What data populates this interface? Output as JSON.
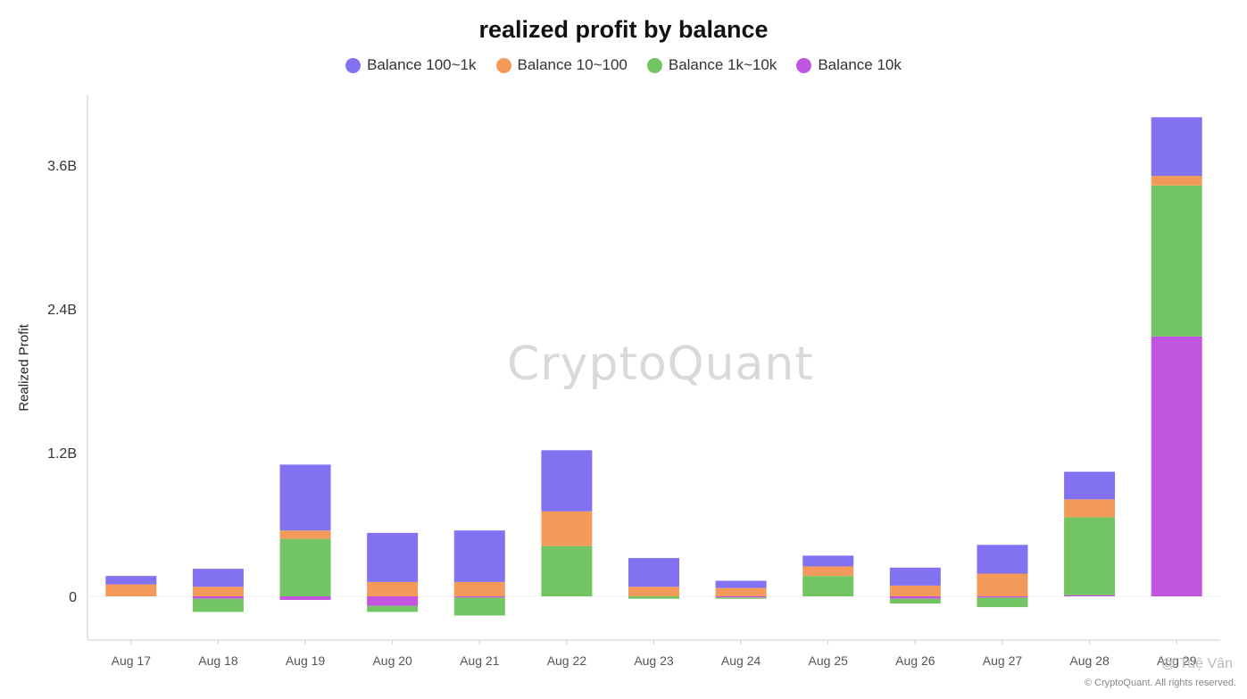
{
  "chart_data": {
    "type": "bar",
    "stacked": true,
    "title": "realized profit by balance",
    "ylabel": "Realized Profit",
    "xlabel": "",
    "categories": [
      "Aug 17",
      "Aug 18",
      "Aug 19",
      "Aug 20",
      "Aug 21",
      "Aug 22",
      "Aug 23",
      "Aug 24",
      "Aug 25",
      "Aug 26",
      "Aug 27",
      "Aug 28",
      "Aug 29"
    ],
    "y_ticks": [
      0,
      1.2,
      2.4,
      3.6
    ],
    "y_tick_labels": [
      "0",
      "1.2B",
      "2.4B",
      "3.6B"
    ],
    "ylim": [
      -0.38,
      4.2
    ],
    "unit": "B",
    "grid": false,
    "legend_position": "top-center",
    "series": [
      {
        "name": "Balance 10k",
        "color": "#c255e0",
        "values": [
          0,
          -0.02,
          -0.03,
          -0.08,
          -0.01,
          0,
          0,
          -0.01,
          0,
          -0.02,
          -0.01,
          0.01,
          2.17
        ]
      },
      {
        "name": "Balance 1k~10k",
        "color": "#72c562",
        "values": [
          0,
          -0.11,
          0.48,
          -0.05,
          -0.15,
          0.42,
          -0.02,
          -0.01,
          0.17,
          -0.04,
          -0.08,
          0.65,
          1.26
        ]
      },
      {
        "name": "Balance 10~100",
        "color": "#f39a5b",
        "values": [
          0.1,
          0.08,
          0.07,
          0.12,
          0.12,
          0.29,
          0.08,
          0.07,
          0.08,
          0.09,
          0.19,
          0.15,
          0.08
        ]
      },
      {
        "name": "Balance 100~1k",
        "color": "#8272f1",
        "values": [
          0.07,
          0.15,
          0.55,
          0.41,
          0.43,
          0.51,
          0.24,
          0.06,
          0.09,
          0.15,
          0.24,
          0.23,
          0.49
        ]
      }
    ],
    "legend_order": [
      "Balance 100~1k",
      "Balance 10~100",
      "Balance 1k~10k",
      "Balance 10k"
    ]
  },
  "watermark": "CryptoQuant",
  "copyright": "© CryptoQuant. All rights reserved.",
  "signature": "@ Tuệ Vân"
}
